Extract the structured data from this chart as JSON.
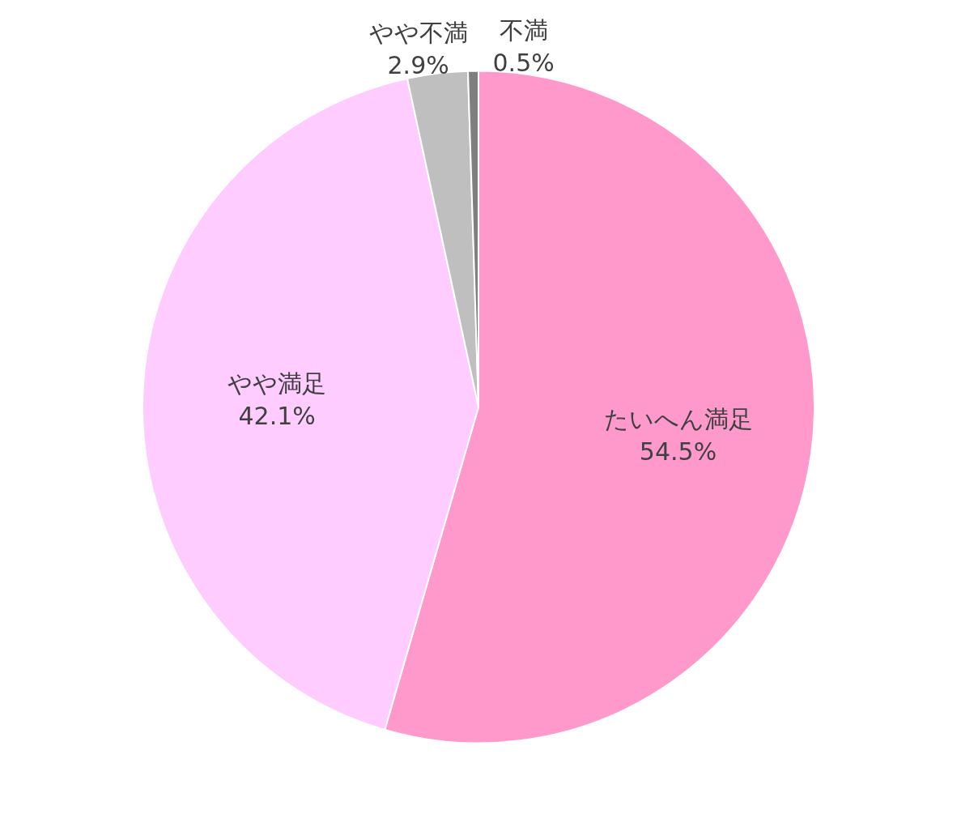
{
  "chart_data": {
    "type": "pie",
    "categories": [
      "たいへん満足",
      "やや満足",
      "やや不満",
      "不満"
    ],
    "values": [
      54.5,
      42.1,
      2.9,
      0.5
    ],
    "value_labels": [
      "54.5%",
      "42.1%",
      "2.9%",
      "0.5%"
    ],
    "colors": [
      "#ff99cc",
      "#ffccff",
      "#bfbfbf",
      "#7f7f7f"
    ]
  }
}
